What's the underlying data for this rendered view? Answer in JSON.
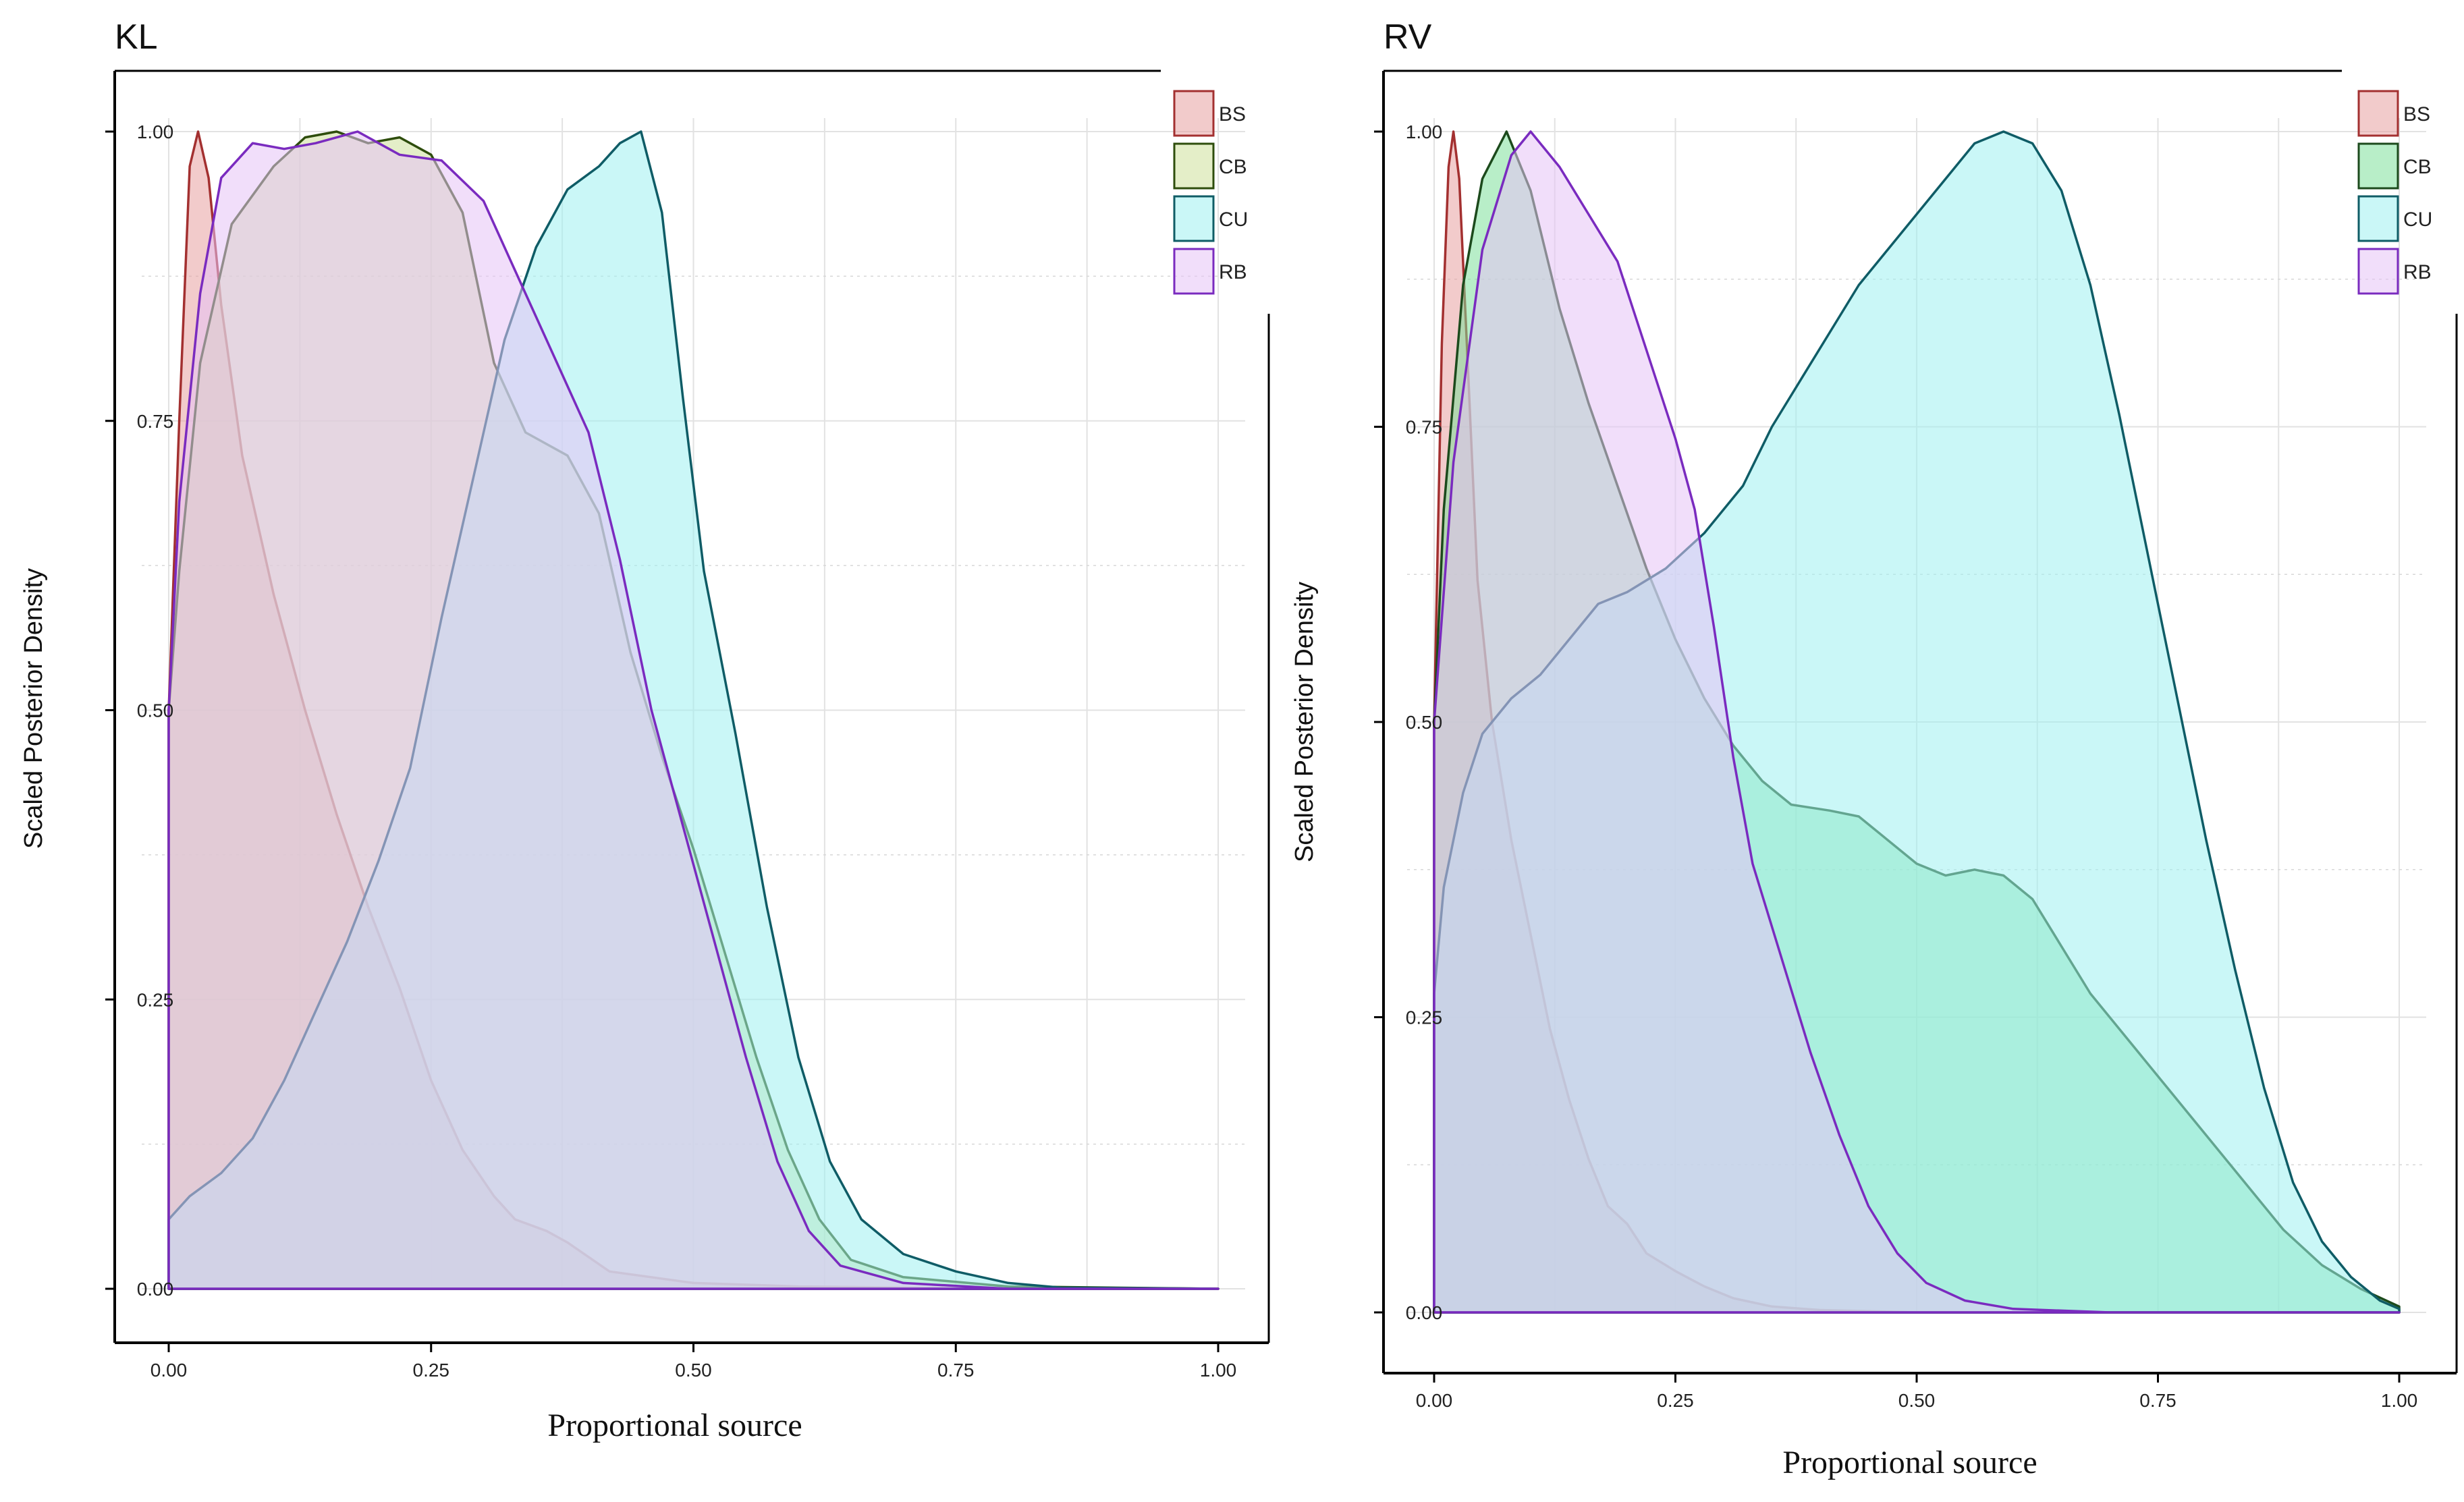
{
  "chart_data": [
    {
      "type": "area",
      "panel": "KL",
      "title": "KL",
      "xlabel": "Proportional source",
      "ylabel": "Scaled Posterior Density",
      "xlim": [
        0,
        1
      ],
      "ylim": [
        0,
        1
      ],
      "x_ticks": [
        "0.00",
        "0.25",
        "0.50",
        "0.75",
        "1.00"
      ],
      "y_ticks": [
        "0.00",
        "0.25",
        "0.50",
        "0.75",
        "1.00"
      ],
      "legend": [
        "BS",
        "CB",
        "CU",
        "RB"
      ],
      "legend_position": "top-right",
      "series": [
        {
          "name": "BS",
          "color": "#e8a0a0",
          "line": "#a33030",
          "points": [
            [
              0,
              0.5
            ],
            [
              0.01,
              0.75
            ],
            [
              0.02,
              0.97
            ],
            [
              0.028,
              1.0
            ],
            [
              0.038,
              0.96
            ],
            [
              0.05,
              0.85
            ],
            [
              0.07,
              0.72
            ],
            [
              0.1,
              0.6
            ],
            [
              0.13,
              0.5
            ],
            [
              0.16,
              0.41
            ],
            [
              0.19,
              0.33
            ],
            [
              0.22,
              0.26
            ],
            [
              0.25,
              0.18
            ],
            [
              0.28,
              0.12
            ],
            [
              0.31,
              0.08
            ],
            [
              0.33,
              0.06
            ],
            [
              0.36,
              0.05
            ],
            [
              0.38,
              0.04
            ],
            [
              0.42,
              0.015
            ],
            [
              0.5,
              0.005
            ],
            [
              0.6,
              0.002
            ],
            [
              0.8,
              0
            ],
            [
              1,
              0
            ]
          ]
        },
        {
          "name": "CB",
          "color": "#cde09a",
          "line": "#2e4d0c",
          "points": [
            [
              0,
              0.5
            ],
            [
              0.01,
              0.62
            ],
            [
              0.03,
              0.8
            ],
            [
              0.06,
              0.92
            ],
            [
              0.1,
              0.97
            ],
            [
              0.13,
              0.995
            ],
            [
              0.16,
              1.0
            ],
            [
              0.19,
              0.99
            ],
            [
              0.22,
              0.995
            ],
            [
              0.25,
              0.98
            ],
            [
              0.28,
              0.93
            ],
            [
              0.31,
              0.8
            ],
            [
              0.34,
              0.74
            ],
            [
              0.38,
              0.72
            ],
            [
              0.41,
              0.67
            ],
            [
              0.44,
              0.55
            ],
            [
              0.47,
              0.46
            ],
            [
              0.5,
              0.38
            ],
            [
              0.53,
              0.29
            ],
            [
              0.56,
              0.2
            ],
            [
              0.59,
              0.12
            ],
            [
              0.62,
              0.06
            ],
            [
              0.65,
              0.025
            ],
            [
              0.7,
              0.01
            ],
            [
              0.8,
              0.002
            ],
            [
              1,
              0
            ]
          ]
        },
        {
          "name": "CU",
          "color": "#9ff0f0",
          "line": "#0f5c66",
          "points": [
            [
              0,
              0.06
            ],
            [
              0.02,
              0.08
            ],
            [
              0.05,
              0.1
            ],
            [
              0.08,
              0.13
            ],
            [
              0.11,
              0.18
            ],
            [
              0.14,
              0.24
            ],
            [
              0.17,
              0.3
            ],
            [
              0.2,
              0.37
            ],
            [
              0.23,
              0.45
            ],
            [
              0.26,
              0.58
            ],
            [
              0.29,
              0.7
            ],
            [
              0.32,
              0.82
            ],
            [
              0.35,
              0.9
            ],
            [
              0.38,
              0.95
            ],
            [
              0.41,
              0.97
            ],
            [
              0.43,
              0.99
            ],
            [
              0.45,
              1.0
            ],
            [
              0.47,
              0.93
            ],
            [
              0.49,
              0.77
            ],
            [
              0.51,
              0.62
            ],
            [
              0.54,
              0.48
            ],
            [
              0.57,
              0.33
            ],
            [
              0.6,
              0.2
            ],
            [
              0.63,
              0.11
            ],
            [
              0.66,
              0.06
            ],
            [
              0.7,
              0.03
            ],
            [
              0.75,
              0.015
            ],
            [
              0.8,
              0.005
            ],
            [
              0.85,
              0.001
            ],
            [
              1,
              0
            ]
          ]
        },
        {
          "name": "RB",
          "color": "#e6c2f5",
          "line": "#7a2bbf",
          "points": [
            [
              0,
              0.5
            ],
            [
              0.01,
              0.68
            ],
            [
              0.03,
              0.86
            ],
            [
              0.05,
              0.96
            ],
            [
              0.08,
              0.99
            ],
            [
              0.11,
              0.985
            ],
            [
              0.14,
              0.99
            ],
            [
              0.18,
              1.0
            ],
            [
              0.22,
              0.98
            ],
            [
              0.26,
              0.975
            ],
            [
              0.3,
              0.94
            ],
            [
              0.34,
              0.86
            ],
            [
              0.37,
              0.8
            ],
            [
              0.4,
              0.74
            ],
            [
              0.43,
              0.63
            ],
            [
              0.46,
              0.5
            ],
            [
              0.49,
              0.4
            ],
            [
              0.52,
              0.3
            ],
            [
              0.55,
              0.2
            ],
            [
              0.58,
              0.11
            ],
            [
              0.61,
              0.05
            ],
            [
              0.64,
              0.02
            ],
            [
              0.7,
              0.005
            ],
            [
              0.8,
              0
            ],
            [
              1,
              0
            ]
          ]
        }
      ]
    },
    {
      "type": "area",
      "panel": "RV",
      "title": "RV",
      "xlabel": "Proportional source",
      "ylabel": "Scaled Posterior Density",
      "xlim": [
        0,
        1
      ],
      "ylim": [
        0,
        1
      ],
      "x_ticks": [
        "0.00",
        "0.25",
        "0.50",
        "0.75",
        "1.00"
      ],
      "y_ticks": [
        "0.00",
        "0.25",
        "0.50",
        "0.75",
        "1.00"
      ],
      "legend": [
        "BS",
        "CB",
        "CU",
        "RB"
      ],
      "legend_position": "top-right",
      "series": [
        {
          "name": "BS",
          "color": "#e8a0a0",
          "line": "#a33030",
          "points": [
            [
              0,
              0.5
            ],
            [
              0.008,
              0.82
            ],
            [
              0.015,
              0.97
            ],
            [
              0.02,
              1.0
            ],
            [
              0.026,
              0.96
            ],
            [
              0.035,
              0.8
            ],
            [
              0.045,
              0.62
            ],
            [
              0.06,
              0.5
            ],
            [
              0.08,
              0.4
            ],
            [
              0.1,
              0.32
            ],
            [
              0.12,
              0.24
            ],
            [
              0.14,
              0.18
            ],
            [
              0.16,
              0.13
            ],
            [
              0.18,
              0.09
            ],
            [
              0.2,
              0.075
            ],
            [
              0.22,
              0.05
            ],
            [
              0.25,
              0.035
            ],
            [
              0.28,
              0.022
            ],
            [
              0.31,
              0.012
            ],
            [
              0.35,
              0.005
            ],
            [
              0.4,
              0.002
            ],
            [
              0.5,
              0
            ],
            [
              1,
              0
            ]
          ]
        },
        {
          "name": "CB",
          "color": "#7ee09a",
          "line": "#1c4a1c",
          "points": [
            [
              0,
              0.5
            ],
            [
              0.01,
              0.68
            ],
            [
              0.03,
              0.87
            ],
            [
              0.05,
              0.96
            ],
            [
              0.075,
              1.0
            ],
            [
              0.1,
              0.95
            ],
            [
              0.13,
              0.85
            ],
            [
              0.16,
              0.77
            ],
            [
              0.19,
              0.7
            ],
            [
              0.22,
              0.63
            ],
            [
              0.25,
              0.57
            ],
            [
              0.28,
              0.52
            ],
            [
              0.31,
              0.48
            ],
            [
              0.34,
              0.45
            ],
            [
              0.37,
              0.43
            ],
            [
              0.41,
              0.425
            ],
            [
              0.44,
              0.42
            ],
            [
              0.47,
              0.4
            ],
            [
              0.5,
              0.38
            ],
            [
              0.53,
              0.37
            ],
            [
              0.56,
              0.375
            ],
            [
              0.59,
              0.37
            ],
            [
              0.62,
              0.35
            ],
            [
              0.65,
              0.31
            ],
            [
              0.68,
              0.27
            ],
            [
              0.72,
              0.23
            ],
            [
              0.76,
              0.19
            ],
            [
              0.8,
              0.15
            ],
            [
              0.84,
              0.11
            ],
            [
              0.88,
              0.07
            ],
            [
              0.92,
              0.04
            ],
            [
              0.96,
              0.02
            ],
            [
              1,
              0.005
            ]
          ]
        },
        {
          "name": "CU",
          "color": "#9ff0f0",
          "line": "#0f5c66",
          "points": [
            [
              0,
              0.27
            ],
            [
              0.01,
              0.36
            ],
            [
              0.03,
              0.44
            ],
            [
              0.05,
              0.49
            ],
            [
              0.08,
              0.52
            ],
            [
              0.11,
              0.54
            ],
            [
              0.14,
              0.57
            ],
            [
              0.17,
              0.6
            ],
            [
              0.2,
              0.61
            ],
            [
              0.24,
              0.63
            ],
            [
              0.28,
              0.66
            ],
            [
              0.32,
              0.7
            ],
            [
              0.35,
              0.75
            ],
            [
              0.38,
              0.79
            ],
            [
              0.41,
              0.83
            ],
            [
              0.44,
              0.87
            ],
            [
              0.47,
              0.9
            ],
            [
              0.5,
              0.93
            ],
            [
              0.53,
              0.96
            ],
            [
              0.56,
              0.99
            ],
            [
              0.59,
              1.0
            ],
            [
              0.62,
              0.99
            ],
            [
              0.65,
              0.95
            ],
            [
              0.68,
              0.87
            ],
            [
              0.71,
              0.76
            ],
            [
              0.74,
              0.64
            ],
            [
              0.77,
              0.52
            ],
            [
              0.8,
              0.4
            ],
            [
              0.83,
              0.29
            ],
            [
              0.86,
              0.19
            ],
            [
              0.89,
              0.11
            ],
            [
              0.92,
              0.06
            ],
            [
              0.95,
              0.03
            ],
            [
              0.98,
              0.01
            ],
            [
              1,
              0.003
            ]
          ]
        },
        {
          "name": "RB",
          "color": "#e6c2f5",
          "line": "#7a2bbf",
          "points": [
            [
              0,
              0.5
            ],
            [
              0.02,
              0.72
            ],
            [
              0.05,
              0.9
            ],
            [
              0.08,
              0.98
            ],
            [
              0.1,
              1.0
            ],
            [
              0.13,
              0.97
            ],
            [
              0.16,
              0.93
            ],
            [
              0.19,
              0.89
            ],
            [
              0.21,
              0.84
            ],
            [
              0.23,
              0.79
            ],
            [
              0.25,
              0.74
            ],
            [
              0.27,
              0.68
            ],
            [
              0.29,
              0.58
            ],
            [
              0.31,
              0.47
            ],
            [
              0.33,
              0.38
            ],
            [
              0.36,
              0.3
            ],
            [
              0.39,
              0.22
            ],
            [
              0.42,
              0.15
            ],
            [
              0.45,
              0.09
            ],
            [
              0.48,
              0.05
            ],
            [
              0.51,
              0.025
            ],
            [
              0.55,
              0.01
            ],
            [
              0.6,
              0.003
            ],
            [
              0.7,
              0
            ],
            [
              1,
              0
            ]
          ]
        }
      ]
    }
  ]
}
